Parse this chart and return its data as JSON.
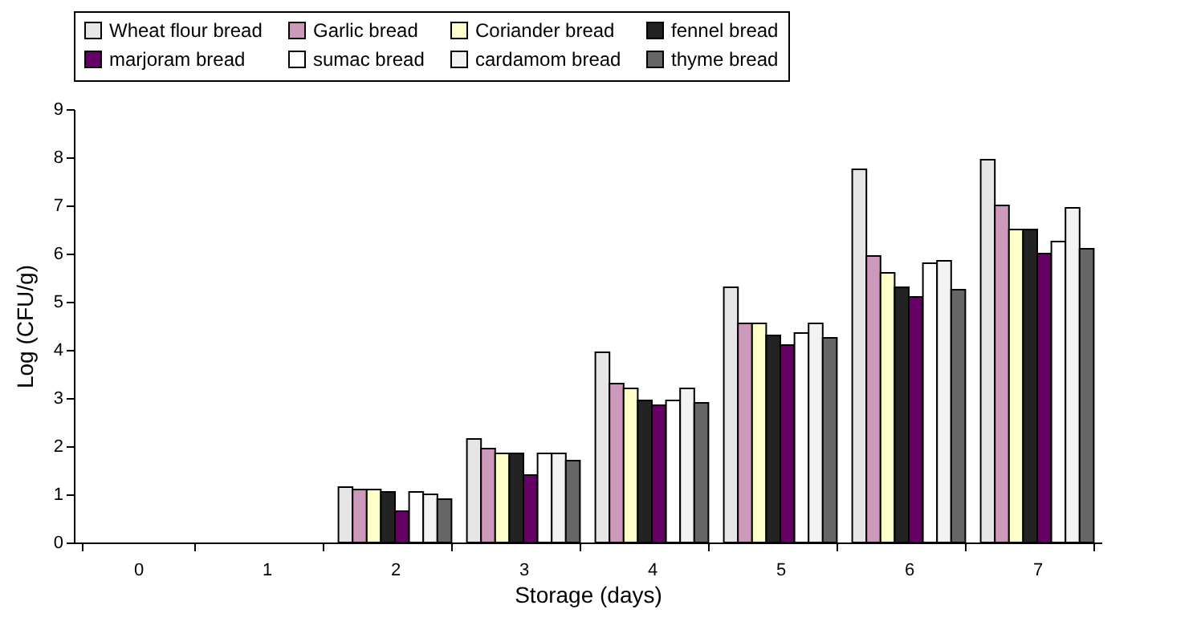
{
  "chart_data": {
    "type": "bar",
    "xlabel": "Storage (days)",
    "ylabel": "Log (CFU/g)",
    "categories": [
      "0",
      "1",
      "2",
      "3",
      "4",
      "5",
      "6",
      "7"
    ],
    "ylim": [
      0,
      9
    ],
    "yticks": [
      0,
      1,
      2,
      3,
      4,
      5,
      6,
      7,
      8,
      9
    ],
    "legend": "top",
    "grid": false,
    "series": [
      {
        "name": "Wheat flour bread",
        "color": "#e6e6e6",
        "values": [
          null,
          null,
          1.15,
          2.15,
          3.95,
          5.3,
          7.75,
          7.95
        ]
      },
      {
        "name": "Garlic bread",
        "color": "#cc99bb",
        "values": [
          null,
          null,
          1.1,
          1.95,
          3.3,
          4.55,
          5.95,
          7.0
        ]
      },
      {
        "name": "Coriander bread",
        "color": "#ffffcc",
        "values": [
          null,
          null,
          1.1,
          1.85,
          3.2,
          4.55,
          5.6,
          6.5
        ]
      },
      {
        "name": "fennel bread",
        "color": "#222222",
        "values": [
          null,
          null,
          1.05,
          1.85,
          2.95,
          4.3,
          5.3,
          6.5
        ]
      },
      {
        "name": "marjoram bread",
        "color": "#660066",
        "values": [
          null,
          null,
          0.65,
          1.4,
          2.85,
          4.1,
          5.1,
          6.0
        ]
      },
      {
        "name": "sumac bread",
        "color": "#ffffff",
        "values": [
          null,
          null,
          1.05,
          1.85,
          2.95,
          4.35,
          5.8,
          6.25
        ]
      },
      {
        "name": "cardamom bread",
        "color": "#f2f2f2",
        "values": [
          null,
          null,
          1.0,
          1.85,
          3.2,
          4.55,
          5.85,
          6.95
        ]
      },
      {
        "name": "thyme bread",
        "color": "#666666",
        "values": [
          null,
          null,
          0.9,
          1.7,
          2.9,
          4.25,
          5.25,
          6.1
        ]
      }
    ]
  }
}
